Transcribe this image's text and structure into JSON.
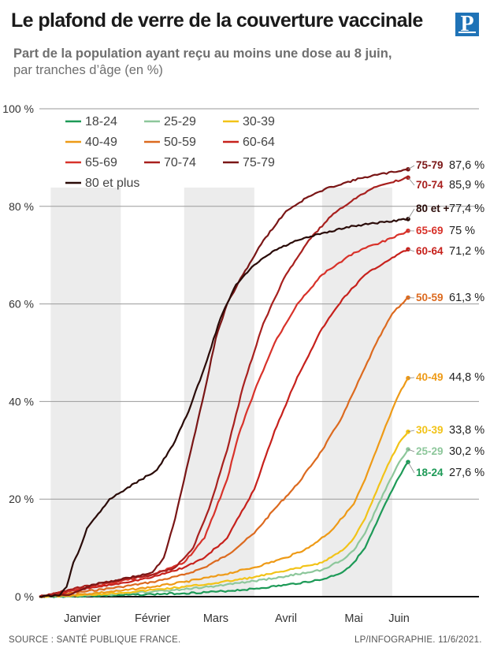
{
  "header": {
    "title": "Le plafond de verre de la couverture vaccinale",
    "subtitle_line1": "Part de la population ayant reçu au moins une dose au 8 juin,",
    "subtitle_line2": "par tranches d’âge (en %)",
    "logo_letter": "P"
  },
  "footer": {
    "source": "SOURCE : SANTÉ PUBLIQUE FRANCE.",
    "credit": "LP/INFOGRAPHIE.  11/6/2021."
  },
  "colors": {
    "18-24": "#1d9a57",
    "25-29": "#8dc79b",
    "30-39": "#f2c318",
    "40-49": "#ee9a16",
    "50-59": "#dc6a1f",
    "60-64": "#c7211c",
    "65-69": "#d8322a",
    "70-74": "#a8201e",
    "75-79": "#7a1616",
    "80 et plus": "#2a0b08"
  },
  "chart_data": {
    "type": "line",
    "title": "Le plafond de verre de la couverture vaccinale",
    "subtitle": "Part de la population ayant reçu au moins une dose au 8 juin, par tranches d’âge (en %)",
    "xlabel": "",
    "ylabel": "",
    "x_start": "2020-12-27",
    "x_end": "2021-06-08",
    "x_ticks": [
      {
        "label": "Janvier",
        "date": "2021-01-15"
      },
      {
        "label": "Février",
        "date": "2021-02-15"
      },
      {
        "label": "Mars",
        "date": "2021-03-15"
      },
      {
        "label": "Avril",
        "date": "2021-04-15"
      },
      {
        "label": "Mai",
        "date": "2021-05-15"
      },
      {
        "label": "Juin",
        "date": "2021-06-04"
      }
    ],
    "month_bands": [
      {
        "from": "2021-01-01",
        "to": "2021-01-31"
      },
      {
        "from": "2021-03-01",
        "to": "2021-03-31"
      },
      {
        "from": "2021-05-01",
        "to": "2021-05-31"
      }
    ],
    "ylim": [
      0,
      100
    ],
    "y_ticks": [
      {
        "value": 0,
        "label": "0 %"
      },
      {
        "value": 20,
        "label": "20 %"
      },
      {
        "value": 40,
        "label": "40 %"
      },
      {
        "value": 60,
        "label": "60 %"
      },
      {
        "value": 80,
        "label": "80 %"
      },
      {
        "value": 100,
        "label": "100 %"
      }
    ],
    "grid": true,
    "legend_position": "top-left",
    "series": [
      {
        "name": "18-24",
        "end_label": "18-24",
        "final_label": "27,6 %",
        "final": 27.6,
        "points": [
          [
            "2020-12-27",
            0
          ],
          [
            "2021-01-15",
            0.1
          ],
          [
            "2021-02-01",
            0.3
          ],
          [
            "2021-02-15",
            0.5
          ],
          [
            "2021-03-01",
            0.7
          ],
          [
            "2021-03-15",
            1.0
          ],
          [
            "2021-04-01",
            1.6
          ],
          [
            "2021-04-15",
            2.4
          ],
          [
            "2021-05-01",
            3.5
          ],
          [
            "2021-05-10",
            5
          ],
          [
            "2021-05-15",
            7
          ],
          [
            "2021-05-20",
            10
          ],
          [
            "2021-05-25",
            15
          ],
          [
            "2021-05-30",
            20
          ],
          [
            "2021-06-04",
            24.5
          ],
          [
            "2021-06-08",
            27.6
          ]
        ]
      },
      {
        "name": "25-29",
        "end_label": "25-29",
        "final_label": "30,2 %",
        "final": 30.2,
        "points": [
          [
            "2020-12-27",
            0
          ],
          [
            "2021-01-15",
            0.2
          ],
          [
            "2021-02-01",
            0.6
          ],
          [
            "2021-02-15",
            1.0
          ],
          [
            "2021-03-01",
            1.5
          ],
          [
            "2021-03-15",
            2.2
          ],
          [
            "2021-04-01",
            3.2
          ],
          [
            "2021-04-15",
            4.2
          ],
          [
            "2021-05-01",
            5.5
          ],
          [
            "2021-05-10",
            7.5
          ],
          [
            "2021-05-15",
            9.5
          ],
          [
            "2021-05-20",
            13
          ],
          [
            "2021-05-25",
            18
          ],
          [
            "2021-05-30",
            23
          ],
          [
            "2021-06-04",
            27.5
          ],
          [
            "2021-06-08",
            30.2
          ]
        ]
      },
      {
        "name": "30-39",
        "end_label": "30-39",
        "final_label": "33,8 %",
        "final": 33.8,
        "points": [
          [
            "2020-12-27",
            0
          ],
          [
            "2021-01-15",
            0.3
          ],
          [
            "2021-02-01",
            0.8
          ],
          [
            "2021-02-15",
            1.4
          ],
          [
            "2021-03-01",
            2.0
          ],
          [
            "2021-03-15",
            2.8
          ],
          [
            "2021-04-01",
            4.0
          ],
          [
            "2021-04-15",
            5.3
          ],
          [
            "2021-05-01",
            7.0
          ],
          [
            "2021-05-10",
            9.5
          ],
          [
            "2021-05-15",
            12
          ],
          [
            "2021-05-20",
            16
          ],
          [
            "2021-05-25",
            21.5
          ],
          [
            "2021-05-30",
            27
          ],
          [
            "2021-06-04",
            31.5
          ],
          [
            "2021-06-08",
            33.8
          ]
        ]
      },
      {
        "name": "40-49",
        "end_label": "40-49",
        "final_label": "44,8 %",
        "final": 44.8,
        "points": [
          [
            "2020-12-27",
            0
          ],
          [
            "2021-01-15",
            0.5
          ],
          [
            "2021-02-01",
            1.2
          ],
          [
            "2021-02-15",
            2.0
          ],
          [
            "2021-03-01",
            3.0
          ],
          [
            "2021-03-15",
            4.2
          ],
          [
            "2021-04-01",
            6.0
          ],
          [
            "2021-04-15",
            8.0
          ],
          [
            "2021-04-25",
            10
          ],
          [
            "2021-05-05",
            13.5
          ],
          [
            "2021-05-15",
            19
          ],
          [
            "2021-05-20",
            24
          ],
          [
            "2021-05-25",
            30
          ],
          [
            "2021-05-30",
            36
          ],
          [
            "2021-06-04",
            41.5
          ],
          [
            "2021-06-08",
            44.8
          ]
        ]
      },
      {
        "name": "50-59",
        "end_label": "50-59",
        "final_label": "61,3 %",
        "final": 61.3,
        "points": [
          [
            "2020-12-27",
            0
          ],
          [
            "2021-01-15",
            1.0
          ],
          [
            "2021-02-01",
            2.0
          ],
          [
            "2021-02-15",
            3.0
          ],
          [
            "2021-03-01",
            4.5
          ],
          [
            "2021-03-10",
            6
          ],
          [
            "2021-03-20",
            8.5
          ],
          [
            "2021-04-01",
            13
          ],
          [
            "2021-04-10",
            18
          ],
          [
            "2021-04-20",
            23
          ],
          [
            "2021-05-01",
            30
          ],
          [
            "2021-05-10",
            37
          ],
          [
            "2021-05-15",
            42
          ],
          [
            "2021-05-20",
            47
          ],
          [
            "2021-05-25",
            52
          ],
          [
            "2021-06-01",
            58
          ],
          [
            "2021-06-08",
            61.3
          ]
        ]
      },
      {
        "name": "60-64",
        "end_label": "60-64",
        "final_label": "71,2 %",
        "final": 71.2,
        "points": [
          [
            "2020-12-27",
            0
          ],
          [
            "2021-01-15",
            1.5
          ],
          [
            "2021-02-01",
            2.8
          ],
          [
            "2021-02-15",
            4.0
          ],
          [
            "2021-03-01",
            6.0
          ],
          [
            "2021-03-10",
            8
          ],
          [
            "2021-03-20",
            12
          ],
          [
            "2021-04-01",
            22
          ],
          [
            "2021-04-10",
            34
          ],
          [
            "2021-04-20",
            45
          ],
          [
            "2021-05-01",
            55
          ],
          [
            "2021-05-10",
            61
          ],
          [
            "2021-05-20",
            66
          ],
          [
            "2021-06-01",
            69.5
          ],
          [
            "2021-06-08",
            71.2
          ]
        ]
      },
      {
        "name": "65-69",
        "end_label": "65-69",
        "final_label": "75 %",
        "final": 75,
        "points": [
          [
            "2020-12-27",
            0
          ],
          [
            "2021-01-15",
            1.8
          ],
          [
            "2021-02-01",
            3.2
          ],
          [
            "2021-02-15",
            4.5
          ],
          [
            "2021-03-01",
            7.0
          ],
          [
            "2021-03-10",
            12
          ],
          [
            "2021-03-20",
            24
          ],
          [
            "2021-03-25",
            33
          ],
          [
            "2021-04-01",
            42
          ],
          [
            "2021-04-10",
            52
          ],
          [
            "2021-04-20",
            60
          ],
          [
            "2021-05-01",
            66
          ],
          [
            "2021-05-15",
            70.5
          ],
          [
            "2021-06-01",
            73.5
          ],
          [
            "2021-06-08",
            75
          ]
        ]
      },
      {
        "name": "70-74",
        "end_label": "70-74",
        "final_label": "85,9 %",
        "final": 85.9,
        "points": [
          [
            "2020-12-27",
            0
          ],
          [
            "2021-01-15",
            2.0
          ],
          [
            "2021-02-01",
            3.5
          ],
          [
            "2021-02-15",
            4.5
          ],
          [
            "2021-02-25",
            6
          ],
          [
            "2021-03-05",
            10
          ],
          [
            "2021-03-12",
            18
          ],
          [
            "2021-03-20",
            30
          ],
          [
            "2021-03-27",
            43
          ],
          [
            "2021-04-05",
            56
          ],
          [
            "2021-04-15",
            66
          ],
          [
            "2021-04-25",
            73
          ],
          [
            "2021-05-05",
            78
          ],
          [
            "2021-05-15",
            81.5
          ],
          [
            "2021-05-25",
            84
          ],
          [
            "2021-06-08",
            85.9
          ]
        ]
      },
      {
        "name": "75-79",
        "end_label": "75-79",
        "final_label": "87,6 %",
        "final": 87.6,
        "points": [
          [
            "2020-12-27",
            0
          ],
          [
            "2021-01-10",
            0.5
          ],
          [
            "2021-01-15",
            1.5
          ],
          [
            "2021-01-20",
            2.5
          ],
          [
            "2021-02-01",
            3.5
          ],
          [
            "2021-02-15",
            5.0
          ],
          [
            "2021-02-20",
            8
          ],
          [
            "2021-02-25",
            16
          ],
          [
            "2021-03-01",
            24
          ],
          [
            "2021-03-05",
            32
          ],
          [
            "2021-03-10",
            42
          ],
          [
            "2021-03-15",
            53
          ],
          [
            "2021-03-20",
            60
          ],
          [
            "2021-03-27",
            66
          ],
          [
            "2021-04-05",
            73
          ],
          [
            "2021-04-15",
            79
          ],
          [
            "2021-04-25",
            82
          ],
          [
            "2021-05-05",
            84
          ],
          [
            "2021-05-20",
            86
          ],
          [
            "2021-06-08",
            87.6
          ]
        ]
      },
      {
        "name": "80 et plus",
        "end_label": "80 et +",
        "final_label": "77,4 %",
        "final": 77.4,
        "points": [
          [
            "2020-12-27",
            0
          ],
          [
            "2021-01-05",
            0.3
          ],
          [
            "2021-01-08",
            2
          ],
          [
            "2021-01-11",
            7
          ],
          [
            "2021-01-14",
            10
          ],
          [
            "2021-01-17",
            14
          ],
          [
            "2021-01-22",
            17
          ],
          [
            "2021-01-27",
            20
          ],
          [
            "2021-02-03",
            22
          ],
          [
            "2021-02-10",
            24
          ],
          [
            "2021-02-17",
            26
          ],
          [
            "2021-02-24",
            31
          ],
          [
            "2021-03-03",
            38
          ],
          [
            "2021-03-10",
            47
          ],
          [
            "2021-03-17",
            57
          ],
          [
            "2021-03-24",
            64
          ],
          [
            "2021-04-01",
            68
          ],
          [
            "2021-04-10",
            71
          ],
          [
            "2021-04-20",
            73
          ],
          [
            "2021-05-01",
            74.5
          ],
          [
            "2021-05-15",
            76
          ],
          [
            "2021-06-08",
            77.4
          ]
        ]
      }
    ]
  }
}
